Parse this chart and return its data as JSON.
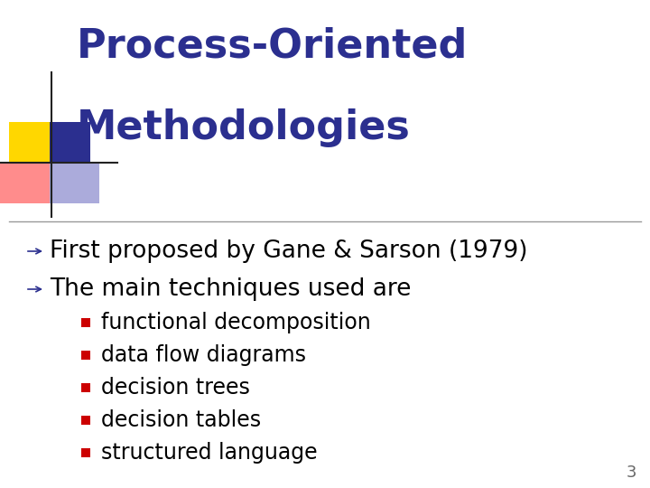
{
  "title_line1": "Process-Oriented",
  "title_line2": "Methodologies",
  "title_color": "#2B2F8F",
  "background_color": "#FFFFFF",
  "bullet1": "First proposed by Gane & Sarson (1979)",
  "bullet2": "The main techniques used are",
  "sub_bullets": [
    "functional decomposition",
    "data flow diagrams",
    "decision trees",
    "decision tables",
    "structured language"
  ],
  "bullet_arrow_color": "#2B2F8F",
  "sub_bullet_square_color": "#CC0000",
  "text_color": "#000000",
  "page_number": "3",
  "title_font_size": 32,
  "bullet_font_size": 19,
  "sub_bullet_font_size": 17,
  "deco_yellow": "#FFD700",
  "deco_red": "#FF6666",
  "deco_blue_dark": "#2B2F8F",
  "deco_blue_light": "#8888CC",
  "line_color": "#999999",
  "page_num_color": "#666666",
  "page_num_fontsize": 13
}
